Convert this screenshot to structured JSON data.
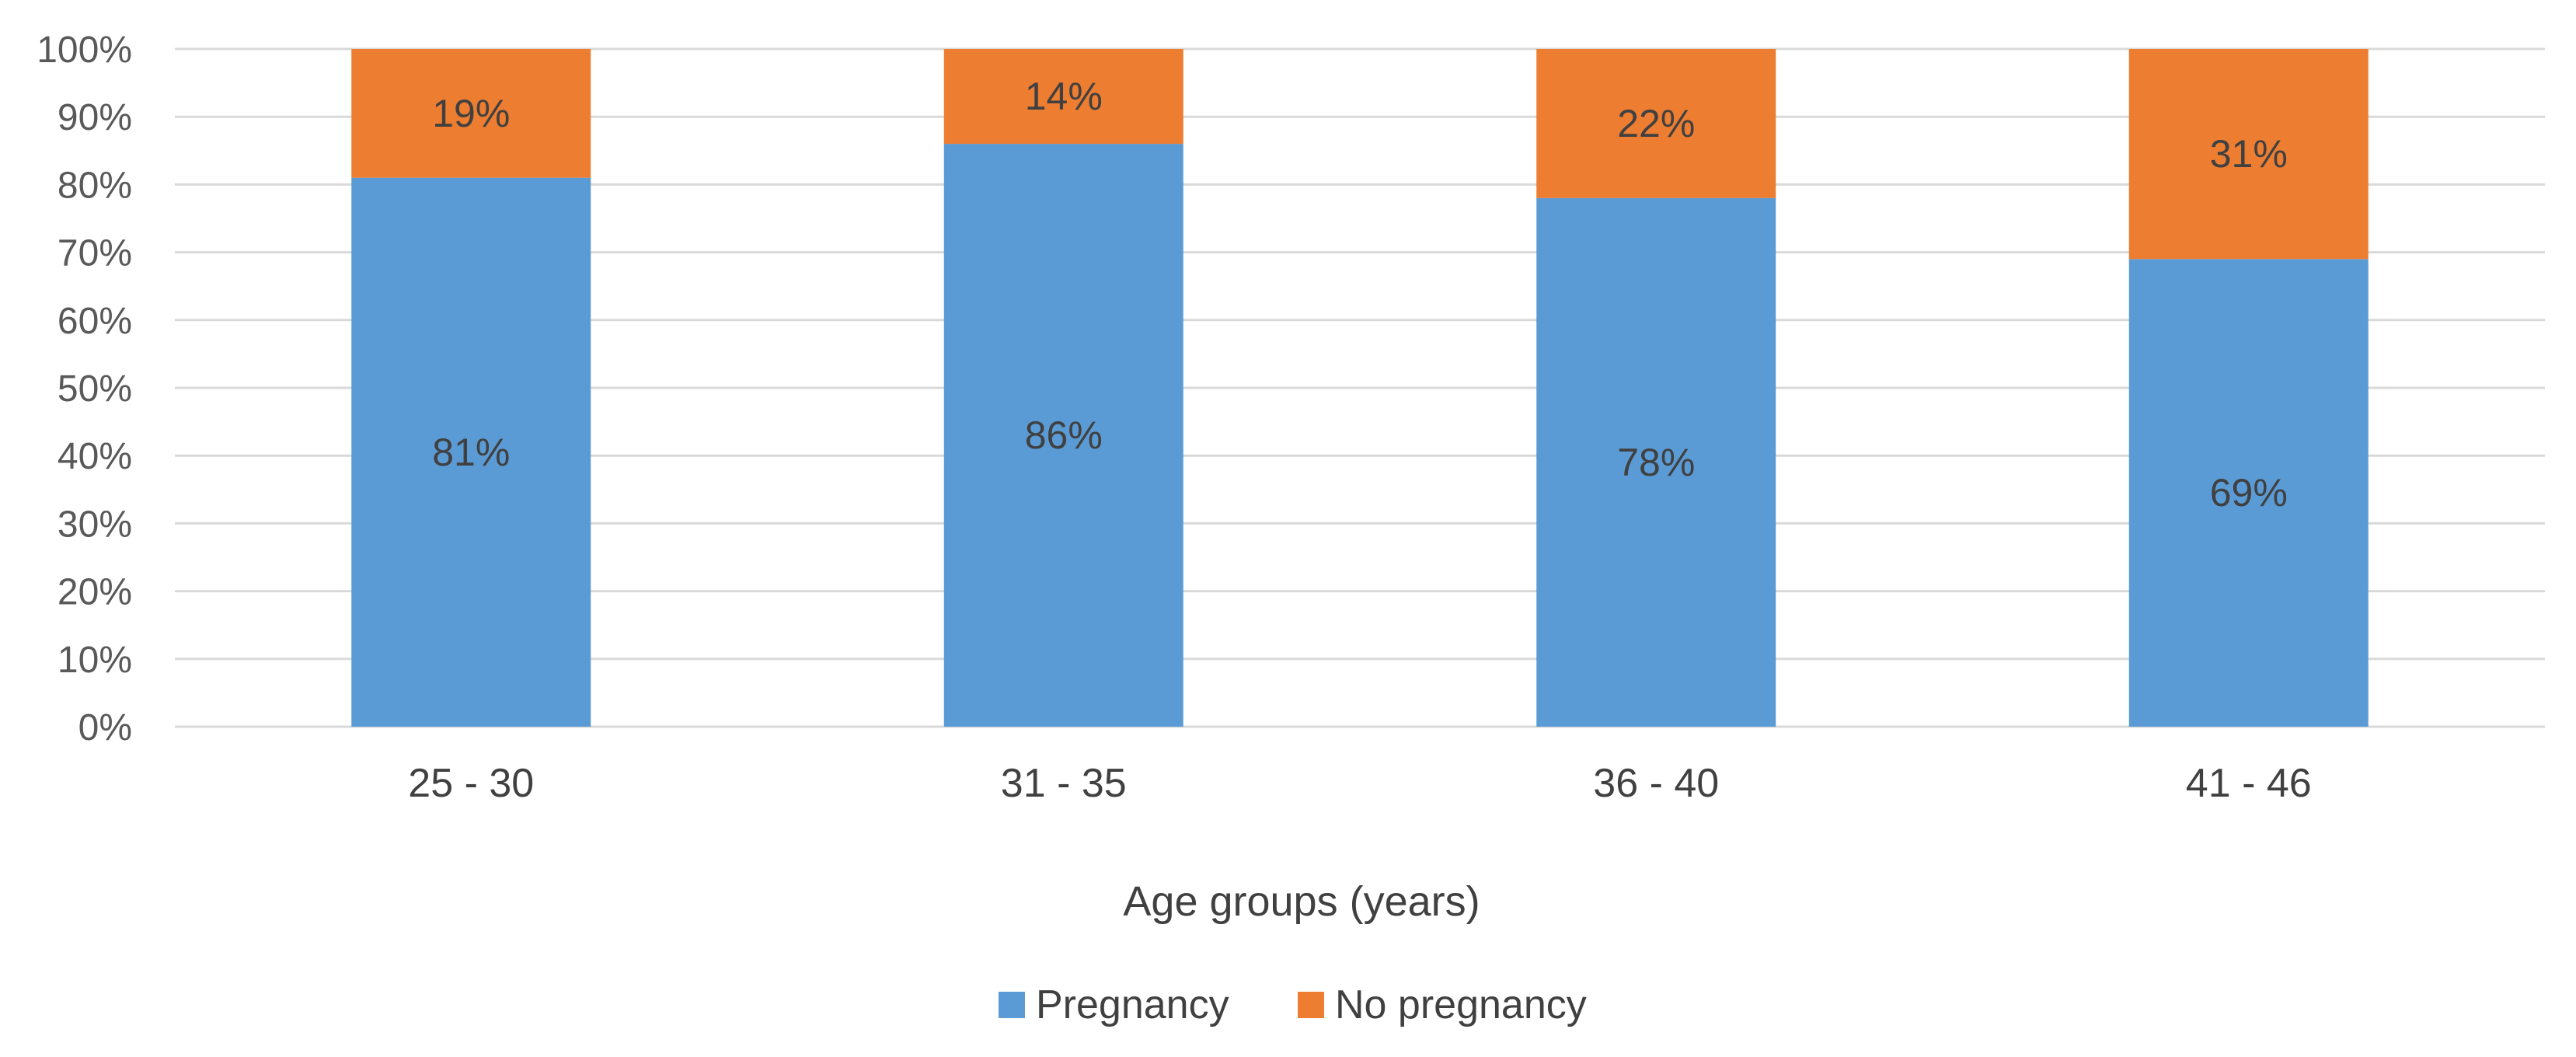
{
  "chart_data": {
    "type": "bar",
    "stacked": true,
    "title": "",
    "xlabel": "Age groups (years)",
    "ylabel": "",
    "categories": [
      "25 - 30",
      "31 - 35",
      "36 - 40",
      "41 - 46"
    ],
    "ylim": [
      0,
      100
    ],
    "y_ticks": [
      0,
      10,
      20,
      30,
      40,
      50,
      60,
      70,
      80,
      90,
      100
    ],
    "y_tick_labels": [
      "0%",
      "10%",
      "20%",
      "30%",
      "40%",
      "50%",
      "60%",
      "70%",
      "80%",
      "90%",
      "100%"
    ],
    "grid": true,
    "legend_position": "bottom",
    "series": [
      {
        "name": "Pregnancy",
        "color": "#5b9bd5",
        "values": [
          81,
          86,
          78,
          69
        ],
        "labels": [
          "81%",
          "86%",
          "78%",
          "69%"
        ]
      },
      {
        "name": "No pregnancy",
        "color": "#ed7d31",
        "values": [
          19,
          14,
          22,
          31
        ],
        "labels": [
          "19%",
          "14%",
          "22%",
          "31%"
        ]
      }
    ]
  }
}
